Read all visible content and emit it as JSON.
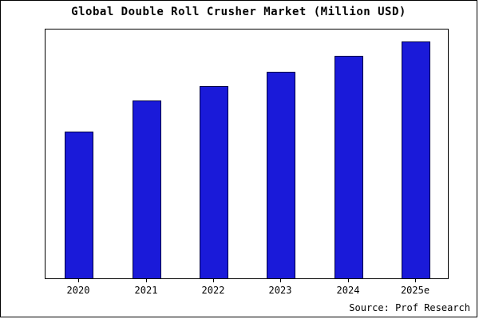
{
  "title": "Global Double Roll Crusher Market (Million USD)",
  "source": "Source: Prof Research",
  "colors": {
    "bar_fill": "#1a1ad9",
    "bar_edge": "#000044",
    "axis": "#000000",
    "background": "#ffffff"
  },
  "chart_data": {
    "type": "bar",
    "title": "Global Double Roll Crusher Market (Million USD)",
    "categories": [
      "2020",
      "2021",
      "2022",
      "2023",
      "2024",
      "2025e"
    ],
    "values": [
      62,
      75,
      81,
      87,
      94,
      100
    ],
    "xlabel": "",
    "ylabel": "",
    "ylim": [
      0,
      105
    ],
    "grid": false,
    "legend": "none",
    "annotation": "Source: Prof Research"
  }
}
